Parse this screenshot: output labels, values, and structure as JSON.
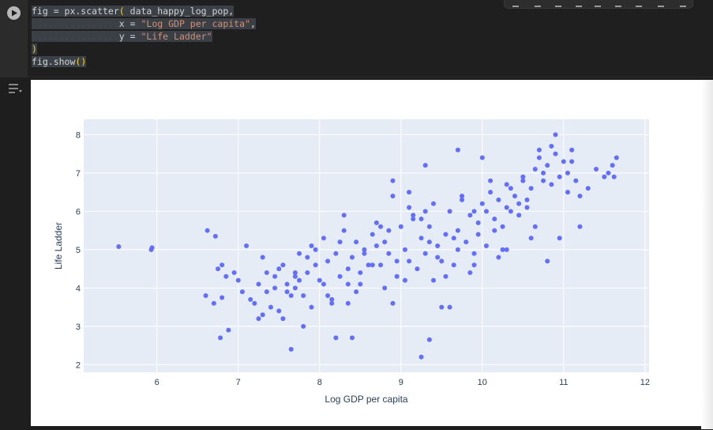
{
  "code_cell": {
    "lines": [
      {
        "pre": "fig = px.scatter",
        "paren": "(",
        "post": " data_happy_log_pop,"
      },
      {
        "dots": "................",
        "pre": "x = ",
        "str": "\"Log GDP per capita\"",
        "post": ","
      },
      {
        "dots": "................",
        "pre": "y = ",
        "str": "\"Life Ladder\""
      },
      {
        "paren": ")"
      },
      {
        "pre": "fig.show",
        "paren": "()"
      }
    ]
  },
  "chart_data": {
    "type": "scatter",
    "title": "",
    "xlabel": "Log GDP per capita",
    "ylabel": "Life Ladder",
    "xlim": [
      5.1,
      12.05
    ],
    "ylim": [
      1.8,
      8.4
    ],
    "xticks": [
      6,
      7,
      8,
      9,
      10,
      11,
      12
    ],
    "yticks": [
      2,
      3,
      4,
      5,
      6,
      7,
      8
    ],
    "grid": true,
    "marker_color": "#636efa",
    "background_color": "#e5ecf6",
    "series": [
      {
        "x": [
          5.53,
          5.94,
          5.93,
          6.62,
          6.72,
          6.8,
          6.85,
          6.88,
          6.78,
          6.8,
          6.6,
          6.7,
          6.75,
          6.95,
          7.0,
          7.1,
          7.05,
          7.2,
          7.25,
          7.3,
          7.15,
          7.35,
          7.4,
          7.45,
          7.5,
          7.55,
          7.6,
          7.65,
          7.7,
          7.75,
          7.8,
          7.85,
          7.9,
          7.95,
          8.0,
          8.05,
          8.1,
          8.15,
          8.2,
          8.25,
          8.3,
          8.35,
          8.4,
          8.45,
          8.5,
          8.55,
          8.6,
          8.65,
          8.7,
          8.75,
          8.8,
          8.85,
          8.9,
          8.95,
          9.0,
          9.05,
          9.1,
          9.15,
          9.2,
          9.25,
          9.3,
          9.35,
          9.4,
          9.45,
          9.5,
          9.55,
          9.6,
          9.65,
          9.7,
          9.75,
          9.8,
          9.85,
          9.9,
          9.95,
          10.0,
          10.05,
          10.1,
          10.15,
          10.2,
          10.25,
          10.3,
          10.35,
          10.4,
          10.45,
          10.5,
          10.55,
          10.6,
          10.65,
          10.7,
          10.75,
          10.8,
          10.85,
          10.9,
          10.95,
          11.0,
          11.05,
          11.1,
          11.15,
          11.2,
          11.3,
          11.4,
          11.5,
          11.6,
          11.65,
          11.62,
          11.55,
          9.25,
          9.35,
          8.2,
          8.4,
          7.6,
          7.7,
          8.9,
          9.1,
          9.3,
          9.7,
          10.0,
          10.3,
          7.45,
          7.65,
          7.85,
          8.05,
          8.25,
          8.45,
          8.65,
          8.85,
          9.05,
          9.25,
          9.45,
          9.65,
          9.85,
          10.05,
          10.25,
          10.45,
          10.65,
          10.85,
          11.05,
          7.35,
          7.55,
          7.75,
          7.95,
          8.15,
          8.35,
          8.55,
          8.75,
          8.95,
          9.15,
          9.35,
          9.55,
          9.75,
          9.95,
          10.15,
          10.35,
          10.55,
          10.75,
          10.95,
          7.3,
          7.5,
          7.7,
          7.9,
          8.1,
          8.3,
          8.5,
          8.7,
          8.9,
          9.1,
          9.3,
          9.5,
          9.7,
          9.9,
          10.1,
          10.3,
          10.5,
          10.7,
          10.9,
          11.1,
          7.25,
          7.8,
          8.35,
          8.8,
          9.4,
          9.6,
          9.9,
          10.2,
          10.6,
          10.8,
          11.2
        ],
        "y": [
          5.08,
          5.05,
          5.0,
          5.5,
          5.35,
          4.6,
          4.3,
          2.9,
          2.7,
          3.75,
          3.8,
          3.6,
          4.5,
          4.4,
          4.2,
          5.1,
          3.9,
          3.6,
          4.1,
          3.3,
          3.7,
          4.4,
          3.5,
          4.0,
          4.5,
          3.2,
          4.1,
          2.4,
          4.0,
          4.9,
          3.8,
          4.4,
          3.5,
          4.6,
          4.2,
          5.3,
          4.7,
          3.6,
          4.9,
          4.3,
          5.5,
          4.1,
          4.8,
          5.2,
          4.4,
          5.0,
          4.6,
          5.4,
          5.7,
          4.6,
          5.2,
          4.9,
          6.4,
          4.3,
          5.6,
          5.0,
          6.1,
          5.8,
          4.5,
          5.3,
          4.9,
          5.6,
          6.2,
          5.1,
          4.7,
          5.4,
          6.0,
          4.6,
          5.5,
          6.4,
          5.2,
          5.9,
          6.0,
          5.4,
          6.2,
          5.1,
          6.5,
          5.8,
          6.3,
          5.6,
          6.7,
          6.0,
          6.4,
          5.9,
          6.9,
          6.3,
          6.6,
          7.1,
          7.4,
          6.8,
          7.2,
          7.7,
          7.5,
          6.9,
          7.3,
          7.0,
          7.6,
          6.8,
          6.4,
          6.6,
          7.1,
          6.9,
          7.2,
          7.4,
          6.9,
          7.0,
          2.2,
          2.65,
          2.7,
          2.7,
          3.9,
          4.4,
          6.8,
          6.5,
          7.2,
          7.6,
          7.4,
          5.0,
          4.3,
          3.8,
          4.8,
          4.1,
          5.2,
          3.9,
          4.6,
          5.5,
          4.2,
          5.8,
          4.8,
          5.3,
          4.4,
          6.0,
          5.0,
          6.2,
          5.6,
          6.7,
          6.5,
          3.9,
          4.6,
          4.2,
          5.0,
          3.7,
          4.5,
          4.9,
          5.6,
          4.7,
          5.9,
          5.2,
          4.3,
          6.3,
          5.7,
          5.5,
          6.6,
          6.1,
          7.0,
          5.3,
          4.8,
          3.4,
          4.3,
          5.1,
          3.8,
          5.9,
          4.1,
          5.1,
          3.6,
          4.7,
          6.0,
          3.5,
          5.0,
          4.9,
          6.8,
          6.1,
          6.8,
          7.6,
          8.0,
          7.3,
          3.2,
          3.0,
          3.6,
          4.0,
          4.2,
          3.5,
          4.6,
          4.8,
          5.3,
          4.7,
          5.6
        ]
      }
    ]
  }
}
